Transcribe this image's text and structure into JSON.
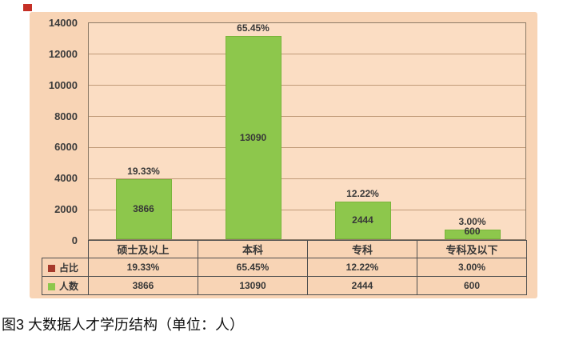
{
  "caption": "图3 大数据人才学历结构（单位：人）",
  "marker": {
    "name": "red-square-marker",
    "color": "#c53026"
  },
  "chart_data": {
    "type": "bar",
    "title": "",
    "categories": [
      "硕士及以上",
      "本科",
      "专科",
      "专科及以下"
    ],
    "series": [
      {
        "name": "占比",
        "role": "percent-labels",
        "key_color": "#a63a2c",
        "values": [
          "19.33%",
          "65.45%",
          "12.22%",
          "3.00%"
        ]
      },
      {
        "name": "人数",
        "role": "bars",
        "key_color": "#8dc74c",
        "values": [
          3866,
          13090,
          2444,
          600
        ]
      }
    ],
    "ylim": [
      0,
      14000
    ],
    "yticks": [
      0,
      2000,
      4000,
      6000,
      8000,
      10000,
      12000,
      14000
    ],
    "grid": true,
    "legend_position": "table-left",
    "data_table_shown": true,
    "colors": {
      "panel_bg": "#f8d4b5",
      "plot_bg": "#fbddc3",
      "grid": "#c09a78",
      "plot_border": "#8c7a66",
      "table_border": "#4f4f4f",
      "bar_fill": "#8dc74c",
      "bar_border": "#79b53b",
      "text": "#383838"
    }
  }
}
